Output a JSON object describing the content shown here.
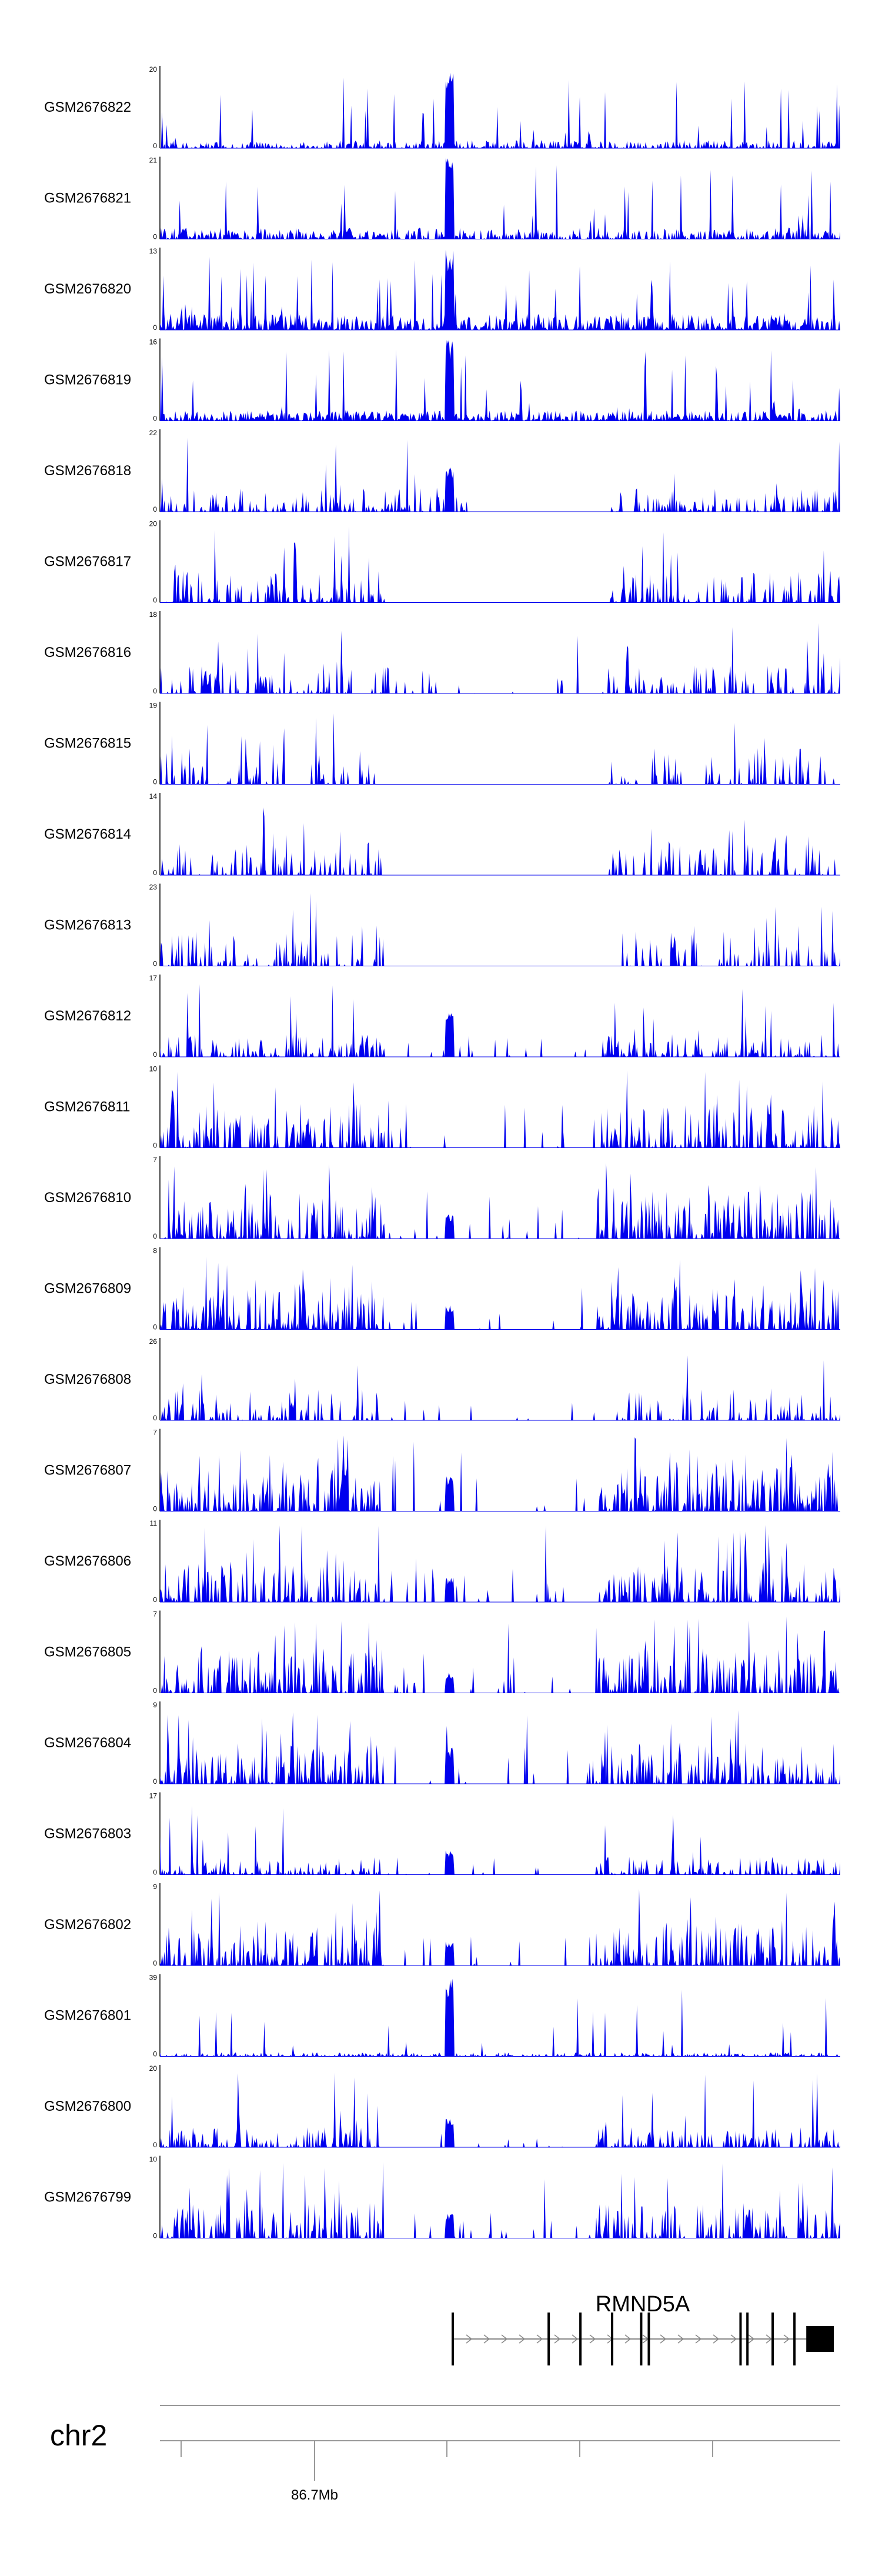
{
  "chart_data": {
    "type": "area",
    "title": "",
    "region": {
      "chromosome": "chr2",
      "gene": {
        "name": "RMND5A",
        "strand": "+",
        "exons": [
          {
            "start": 0.0,
            "end": 0.006
          },
          {
            "start": 0.251,
            "end": 0.254
          },
          {
            "start": 0.334,
            "end": 0.338
          },
          {
            "start": 0.417,
            "end": 0.421
          },
          {
            "start": 0.493,
            "end": 0.496
          },
          {
            "start": 0.513,
            "end": 0.516
          },
          {
            "start": 0.753,
            "end": 0.757
          },
          {
            "start": 0.771,
            "end": 0.775
          },
          {
            "start": 0.837,
            "end": 0.841
          },
          {
            "start": 0.894,
            "end": 0.898
          },
          {
            "start": 0.928,
            "end": 1.0
          }
        ]
      },
      "ticks": [
        {
          "label": ""
        },
        {
          "label": "86.7Mb"
        },
        {
          "label": ""
        },
        {
          "label": ""
        },
        {
          "label": ""
        }
      ]
    },
    "tracks": [
      {
        "name": "GSM2676822",
        "ymin": 0,
        "ymax": 20
      },
      {
        "name": "GSM2676821",
        "ymin": 0,
        "ymax": 21
      },
      {
        "name": "GSM2676820",
        "ymin": 0,
        "ymax": 13
      },
      {
        "name": "GSM2676819",
        "ymin": 0,
        "ymax": 16
      },
      {
        "name": "GSM2676818",
        "ymin": 0,
        "ymax": 22
      },
      {
        "name": "GSM2676817",
        "ymin": 0,
        "ymax": 20
      },
      {
        "name": "GSM2676816",
        "ymin": 0,
        "ymax": 18
      },
      {
        "name": "GSM2676815",
        "ymin": 0,
        "ymax": 19
      },
      {
        "name": "GSM2676814",
        "ymin": 0,
        "ymax": 14
      },
      {
        "name": "GSM2676813",
        "ymin": 0,
        "ymax": 23
      },
      {
        "name": "GSM2676812",
        "ymin": 0,
        "ymax": 17
      },
      {
        "name": "GSM2676811",
        "ymin": 0,
        "ymax": 10
      },
      {
        "name": "GSM2676810",
        "ymin": 0,
        "ymax": 7
      },
      {
        "name": "GSM2676809",
        "ymin": 0,
        "ymax": 8
      },
      {
        "name": "GSM2676808",
        "ymin": 0,
        "ymax": 26
      },
      {
        "name": "GSM2676807",
        "ymin": 0,
        "ymax": 7
      },
      {
        "name": "GSM2676806",
        "ymin": 0,
        "ymax": 11
      },
      {
        "name": "GSM2676805",
        "ymin": 0,
        "ymax": 7
      },
      {
        "name": "GSM2676804",
        "ymin": 0,
        "ymax": 9
      },
      {
        "name": "GSM2676803",
        "ymin": 0,
        "ymax": 17
      },
      {
        "name": "GSM2676802",
        "ymin": 0,
        "ymax": 9
      },
      {
        "name": "GSM2676801",
        "ymin": 0,
        "ymax": 39
      },
      {
        "name": "GSM2676800",
        "ymin": 0,
        "ymax": 20
      },
      {
        "name": "GSM2676799",
        "ymin": 0,
        "ymax": 10
      }
    ],
    "colors": {
      "signal": "#0000ee",
      "axis": "#000000",
      "gene": "#000000",
      "intron_arrow": "#888888",
      "chrom_line": "#999999"
    }
  }
}
